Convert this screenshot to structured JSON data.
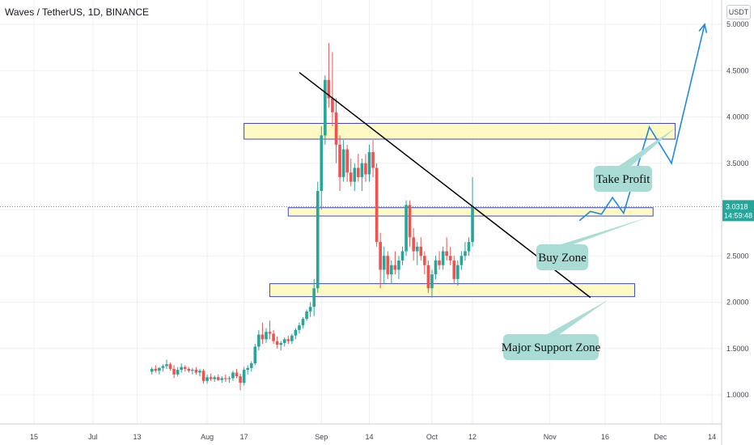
{
  "header": {
    "title": "Waves / TetherUS, 1D, BINANCE"
  },
  "currency_button": "USDT",
  "price_badge": {
    "price": "3.0318",
    "countdown": "14:59:48",
    "color": "#26a69a"
  },
  "colors": {
    "up": "#26a69a",
    "down": "#ef5350",
    "zone_fill": "#fff9c4",
    "zone_stroke": "#3f48cc",
    "callout_fill": "#a8dcd4",
    "projection": "#1e88e5",
    "trendline": "#000000"
  },
  "chart_data": {
    "type": "candlestick",
    "title": "Waves / TetherUS, 1D, BINANCE",
    "y_ticks": [
      "5.0000",
      "4.5000",
      "4.0000",
      "3.5000",
      "3.0000",
      "2.5000",
      "2.0000",
      "1.5000",
      "1.0000"
    ],
    "y_tick_values": [
      5.0,
      4.5,
      4.0,
      3.5,
      3.0,
      2.5,
      2.0,
      1.5,
      1.0
    ],
    "x_ticks": [
      "15",
      "Jul",
      "13",
      "Aug",
      "17",
      "Sep",
      "14",
      "Oct",
      "12",
      "Nov",
      "16",
      "Dec",
      "14"
    ],
    "x_tick_days": [
      0,
      16,
      28,
      47,
      57,
      78,
      91,
      108,
      119,
      140,
      155,
      170,
      184
    ],
    "x_axis_start": "2020-06-15",
    "ylim": [
      0.55,
      5.3
    ],
    "last_price": 3.0318,
    "candles": [
      [
        1.25,
        1.3,
        1.22,
        1.28
      ],
      [
        1.28,
        1.32,
        1.24,
        1.26
      ],
      [
        1.26,
        1.3,
        1.22,
        1.29
      ],
      [
        1.29,
        1.33,
        1.25,
        1.31
      ],
      [
        1.31,
        1.38,
        1.28,
        1.33
      ],
      [
        1.33,
        1.35,
        1.26,
        1.28
      ],
      [
        1.28,
        1.32,
        1.18,
        1.22
      ],
      [
        1.22,
        1.3,
        1.2,
        1.27
      ],
      [
        1.27,
        1.34,
        1.24,
        1.3
      ],
      [
        1.3,
        1.32,
        1.25,
        1.28
      ],
      [
        1.28,
        1.3,
        1.24,
        1.26
      ],
      [
        1.26,
        1.29,
        1.22,
        1.27
      ],
      [
        1.27,
        1.3,
        1.22,
        1.24
      ],
      [
        1.24,
        1.28,
        1.2,
        1.26
      ],
      [
        1.26,
        1.28,
        1.12,
        1.15
      ],
      [
        1.15,
        1.22,
        1.12,
        1.19
      ],
      [
        1.19,
        1.23,
        1.15,
        1.17
      ],
      [
        1.17,
        1.21,
        1.14,
        1.19
      ],
      [
        1.19,
        1.22,
        1.15,
        1.16
      ],
      [
        1.16,
        1.2,
        1.13,
        1.18
      ],
      [
        1.18,
        1.22,
        1.14,
        1.17
      ],
      [
        1.17,
        1.2,
        1.13,
        1.18
      ],
      [
        1.18,
        1.26,
        1.15,
        1.24
      ],
      [
        1.24,
        1.28,
        1.18,
        1.2
      ],
      [
        1.2,
        1.23,
        1.05,
        1.13
      ],
      [
        1.13,
        1.3,
        1.1,
        1.27
      ],
      [
        1.27,
        1.32,
        1.22,
        1.29
      ],
      [
        1.29,
        1.36,
        1.25,
        1.34
      ],
      [
        1.34,
        1.55,
        1.32,
        1.52
      ],
      [
        1.52,
        1.7,
        1.48,
        1.65
      ],
      [
        1.65,
        1.78,
        1.55,
        1.6
      ],
      [
        1.6,
        1.72,
        1.56,
        1.68
      ],
      [
        1.68,
        1.8,
        1.6,
        1.66
      ],
      [
        1.66,
        1.7,
        1.55,
        1.58
      ],
      [
        1.58,
        1.63,
        1.5,
        1.54
      ],
      [
        1.54,
        1.58,
        1.48,
        1.56
      ],
      [
        1.56,
        1.62,
        1.52,
        1.6
      ],
      [
        1.6,
        1.64,
        1.55,
        1.58
      ],
      [
        1.58,
        1.66,
        1.55,
        1.64
      ],
      [
        1.64,
        1.72,
        1.6,
        1.7
      ],
      [
        1.7,
        1.78,
        1.66,
        1.75
      ],
      [
        1.75,
        1.84,
        1.72,
        1.82
      ],
      [
        1.82,
        1.92,
        1.8,
        1.9
      ],
      [
        1.9,
        2.0,
        1.84,
        1.95
      ],
      [
        1.95,
        2.25,
        1.85,
        2.15
      ],
      [
        2.15,
        3.3,
        2.1,
        3.2
      ],
      [
        3.2,
        3.9,
        3.0,
        3.8
      ],
      [
        3.8,
        4.45,
        3.7,
        4.4
      ],
      [
        4.4,
        4.8,
        4.1,
        4.2
      ],
      [
        4.2,
        4.7,
        3.9,
        4.05
      ],
      [
        4.05,
        4.2,
        3.5,
        3.7
      ],
      [
        3.7,
        3.8,
        3.2,
        3.35
      ],
      [
        3.35,
        3.75,
        3.3,
        3.65
      ],
      [
        3.65,
        3.7,
        3.3,
        3.4
      ],
      [
        3.4,
        3.55,
        3.25,
        3.3
      ],
      [
        3.3,
        3.5,
        3.2,
        3.45
      ],
      [
        3.45,
        3.6,
        3.3,
        3.35
      ],
      [
        3.35,
        3.55,
        3.2,
        3.5
      ],
      [
        3.5,
        3.6,
        3.3,
        3.38
      ],
      [
        3.38,
        3.7,
        3.3,
        3.62
      ],
      [
        3.62,
        3.75,
        3.35,
        3.45
      ],
      [
        3.45,
        3.5,
        2.6,
        2.65
      ],
      [
        2.65,
        2.75,
        2.15,
        2.35
      ],
      [
        2.35,
        2.6,
        2.2,
        2.5
      ],
      [
        2.5,
        2.55,
        2.25,
        2.3
      ],
      [
        2.3,
        2.45,
        2.2,
        2.4
      ],
      [
        2.4,
        2.55,
        2.3,
        2.35
      ],
      [
        2.35,
        2.5,
        2.25,
        2.45
      ],
      [
        2.45,
        2.6,
        2.4,
        2.55
      ],
      [
        2.55,
        3.1,
        2.5,
        3.05
      ],
      [
        3.05,
        3.1,
        2.6,
        2.7
      ],
      [
        2.7,
        2.8,
        2.45,
        2.55
      ],
      [
        2.55,
        2.65,
        2.4,
        2.6
      ],
      [
        2.6,
        2.7,
        2.45,
        2.5
      ],
      [
        2.5,
        2.55,
        2.3,
        2.4
      ],
      [
        2.4,
        2.45,
        2.1,
        2.15
      ],
      [
        2.15,
        2.35,
        2.05,
        2.3
      ],
      [
        2.3,
        2.5,
        2.25,
        2.45
      ],
      [
        2.45,
        2.55,
        2.35,
        2.4
      ],
      [
        2.4,
        2.6,
        2.35,
        2.55
      ],
      [
        2.55,
        2.7,
        2.45,
        2.5
      ],
      [
        2.5,
        2.6,
        2.4,
        2.45
      ],
      [
        2.45,
        2.5,
        2.2,
        2.25
      ],
      [
        2.25,
        2.45,
        2.18,
        2.4
      ],
      [
        2.4,
        2.55,
        2.35,
        2.5
      ],
      [
        2.5,
        2.65,
        2.45,
        2.55
      ],
      [
        2.55,
        2.7,
        2.5,
        2.65
      ],
      [
        2.65,
        3.35,
        2.6,
        3.03
      ]
    ],
    "zones": [
      {
        "name": "upper-zone",
        "y_low": 3.76,
        "y_high": 3.93,
        "x_start_day": 57,
        "x_end_day": 174
      },
      {
        "name": "buy-zone",
        "y_low": 2.93,
        "y_high": 3.02,
        "x_start_day": 69,
        "x_end_day": 168
      },
      {
        "name": "major-support-zone",
        "y_low": 2.06,
        "y_high": 2.2,
        "x_start_day": 64,
        "x_end_day": 163
      }
    ],
    "trendline": {
      "from": [
        72,
        4.48
      ],
      "to": [
        151,
        2.05
      ]
    },
    "projection": [
      [
        148,
        2.88
      ],
      [
        151,
        2.98
      ],
      [
        154,
        2.95
      ],
      [
        157,
        3.13
      ],
      [
        160,
        2.96
      ],
      [
        167,
        3.89
      ],
      [
        173,
        3.5
      ],
      [
        182,
        5.0
      ]
    ],
    "callouts": [
      {
        "label": "Take Profit",
        "target": [
          174,
          3.88
        ]
      },
      {
        "label": "Buy Zone",
        "target": [
          167,
          2.92
        ]
      },
      {
        "label": "Major Support Zone",
        "target": [
          156,
          2.03
        ]
      }
    ]
  }
}
